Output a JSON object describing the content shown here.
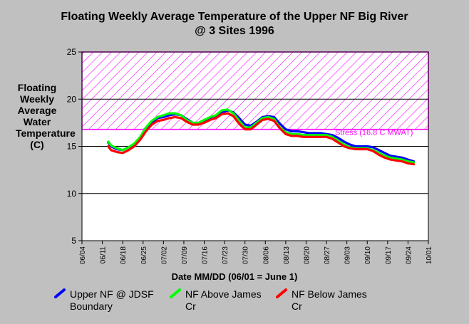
{
  "chart_data": {
    "type": "line",
    "title": "Floating Weekly Average Temperature of the Upper NF Big River",
    "subtitle": "@ 3 Sites 1996",
    "xlabel": "Date MM/DD (06/01 = June 1)",
    "ylabel_lines": [
      "Floating Weekly",
      "Average Water",
      "Temperature (C)"
    ],
    "x_ticks": [
      "06/04",
      "06/11",
      "06/18",
      "06/25",
      "07/02",
      "07/09",
      "07/16",
      "07/23",
      "07/30",
      "08/06",
      "08/13",
      "08/20",
      "08/27",
      "09/03",
      "09/10",
      "09/17",
      "09/24",
      "10/01"
    ],
    "y_ticks": [
      "5",
      "10",
      "15",
      "20",
      "25"
    ],
    "ylim": [
      5,
      25
    ],
    "xlim_day": [
      4,
      123
    ],
    "stress_band": {
      "from": 16.8,
      "to": 25,
      "label": "Stress (16.8 C MWAT)",
      "color": "#ff00ff"
    },
    "grid_lines_y": [
      10,
      15,
      20
    ],
    "series": [
      {
        "name": "Upper NF @ JDSF Boundary",
        "color": "#0000ff",
        "x": [
          13,
          14,
          16,
          18,
          20,
          22,
          24,
          26,
          28,
          30,
          32,
          34,
          36,
          38,
          40,
          42,
          44,
          46,
          48,
          50,
          52,
          54,
          56,
          58,
          60,
          62,
          64,
          66,
          68,
          70,
          72,
          74,
          76,
          78,
          80,
          82,
          84,
          86,
          88,
          90,
          92,
          94,
          96,
          98,
          100,
          102,
          104,
          106,
          108,
          110,
          112,
          114,
          116,
          118
        ],
        "y": [
          15.4,
          15.0,
          14.7,
          14.6,
          14.9,
          15.2,
          15.9,
          16.8,
          17.5,
          18.0,
          18.1,
          18.3,
          18.4,
          18.3,
          17.9,
          17.5,
          17.4,
          17.6,
          18.0,
          18.2,
          18.6,
          18.8,
          18.6,
          18.0,
          17.3,
          17.2,
          17.6,
          18.1,
          18.2,
          18.1,
          17.4,
          16.8,
          16.6,
          16.6,
          16.5,
          16.4,
          16.4,
          16.4,
          16.3,
          16.2,
          15.9,
          15.5,
          15.2,
          15.0,
          15.0,
          15.0,
          14.9,
          14.6,
          14.3,
          14.0,
          13.9,
          13.8,
          13.6,
          13.4
        ]
      },
      {
        "name": "NF Above James Cr",
        "color": "#00ff00",
        "x": [
          13,
          14,
          16,
          18,
          20,
          22,
          24,
          26,
          28,
          30,
          32,
          34,
          36,
          38,
          40,
          42,
          44,
          46,
          48,
          50,
          52,
          54,
          56,
          58,
          60,
          62,
          64,
          66,
          68,
          70,
          72,
          74,
          76,
          78,
          80,
          82,
          84,
          86,
          88,
          90,
          92,
          94,
          96,
          98,
          100,
          102,
          104,
          106,
          108,
          110,
          112,
          114,
          116,
          118
        ],
        "y": [
          15.5,
          15.1,
          14.8,
          14.6,
          14.9,
          15.3,
          16.0,
          17.0,
          17.7,
          18.1,
          18.3,
          18.5,
          18.5,
          18.3,
          17.8,
          17.5,
          17.5,
          17.8,
          18.1,
          18.3,
          18.8,
          18.9,
          18.5,
          17.7,
          17.0,
          17.0,
          17.5,
          18.0,
          18.1,
          17.9,
          17.0,
          16.5,
          16.3,
          16.3,
          16.2,
          16.2,
          16.2,
          16.2,
          16.2,
          16.0,
          15.6,
          15.2,
          14.9,
          14.8,
          14.8,
          14.8,
          14.6,
          14.3,
          14.0,
          13.8,
          13.7,
          13.6,
          13.4,
          13.3
        ]
      },
      {
        "name": "NF Below James Cr",
        "color": "#ff0000",
        "x": [
          13,
          14,
          16,
          18,
          20,
          22,
          24,
          26,
          28,
          30,
          32,
          34,
          36,
          38,
          40,
          42,
          44,
          46,
          48,
          50,
          52,
          54,
          56,
          58,
          60,
          62,
          64,
          66,
          68,
          70,
          72,
          74,
          76,
          78,
          80,
          82,
          84,
          86,
          88,
          90,
          92,
          94,
          96,
          98,
          100,
          102,
          104,
          106,
          108,
          110,
          112,
          114,
          116,
          118
        ],
        "y": [
          15.0,
          14.6,
          14.4,
          14.3,
          14.6,
          15.0,
          15.7,
          16.6,
          17.3,
          17.7,
          17.8,
          18.0,
          18.1,
          18.0,
          17.6,
          17.3,
          17.3,
          17.5,
          17.8,
          18.0,
          18.4,
          18.5,
          18.2,
          17.4,
          16.8,
          16.8,
          17.3,
          17.8,
          17.9,
          17.7,
          16.9,
          16.3,
          16.1,
          16.1,
          16.0,
          16.0,
          16.0,
          16.0,
          16.0,
          15.8,
          15.4,
          15.0,
          14.8,
          14.7,
          14.7,
          14.7,
          14.5,
          14.1,
          13.8,
          13.6,
          13.5,
          13.4,
          13.2,
          13.1
        ]
      }
    ],
    "legend": [
      {
        "line1": "Upper NF @ JDSF",
        "line2": "Boundary"
      },
      {
        "line1": "NF Above James",
        "line2": "Cr"
      },
      {
        "line1": "NF Below James",
        "line2": "Cr"
      }
    ]
  }
}
